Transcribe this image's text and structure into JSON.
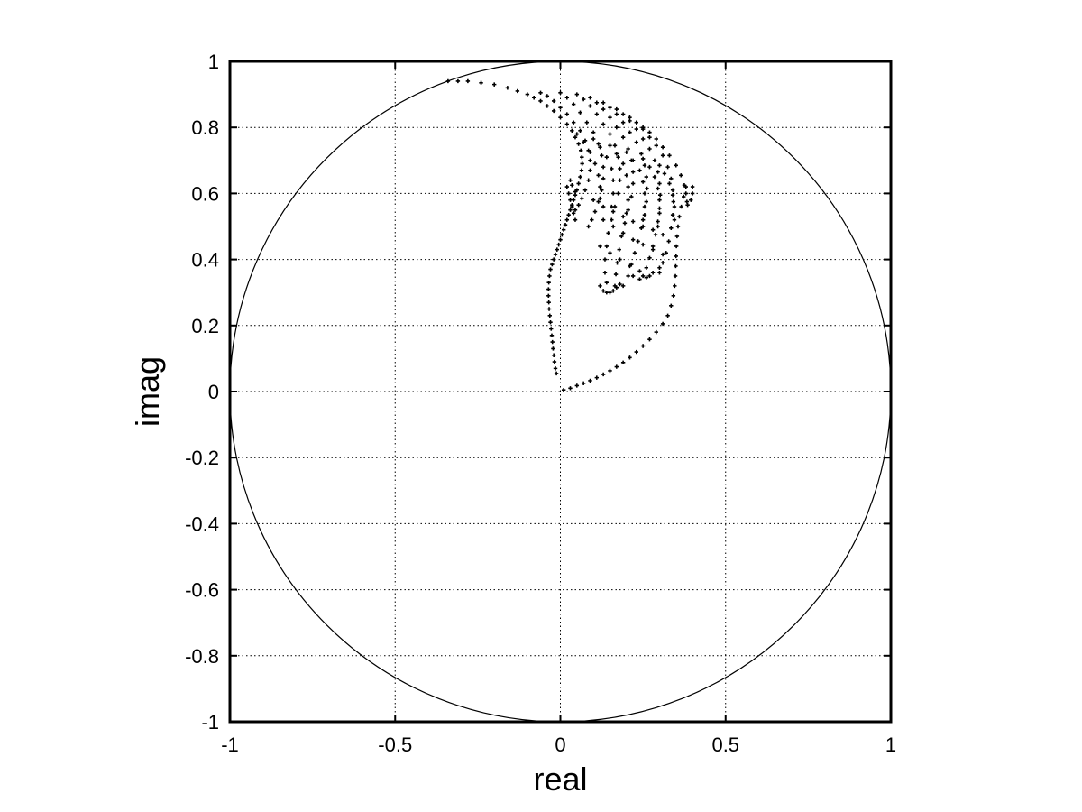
{
  "chart_data": {
    "type": "scatter",
    "title": "",
    "xlabel": "real",
    "ylabel": "imag",
    "xlim": [
      -1,
      1
    ],
    "ylim": [
      -1,
      1
    ],
    "grid": true,
    "xticks": [
      -1,
      -0.5,
      0,
      0.5,
      1
    ],
    "xtick_labels": [
      "-1",
      "-0.5",
      "0",
      "0.5",
      "1"
    ],
    "yticks": [
      -1,
      -0.8,
      -0.6,
      -0.4,
      -0.2,
      0,
      0.2,
      0.4,
      0.6,
      0.8,
      1
    ],
    "ytick_labels": [
      "-1",
      "-0.8",
      "-0.6",
      "-0.4",
      "-0.2",
      "0",
      "0.2",
      "0.4",
      "0.6",
      "0.8",
      "1"
    ],
    "unit_circle": {
      "center": [
        0,
        0
      ],
      "radius": 1
    },
    "marker_color": "#000000",
    "series": [
      {
        "points": [
          [
            -0.34,
            0.94
          ],
          [
            -0.31,
            0.94
          ],
          [
            -0.28,
            0.94
          ],
          [
            -0.24,
            0.935
          ],
          [
            -0.2,
            0.93
          ],
          [
            -0.16,
            0.92
          ],
          [
            -0.13,
            0.91
          ],
          [
            -0.1,
            0.9
          ],
          [
            -0.08,
            0.89
          ],
          [
            -0.06,
            0.88
          ],
          [
            -0.04,
            0.865
          ],
          [
            -0.02,
            0.85
          ],
          [
            0.0,
            0.83
          ],
          [
            0.02,
            0.81
          ],
          [
            0.035,
            0.79
          ],
          [
            0.045,
            0.77
          ],
          [
            0.055,
            0.75
          ],
          [
            0.062,
            0.73
          ],
          [
            0.065,
            0.71
          ],
          [
            0.066,
            0.69
          ],
          [
            0.064,
            0.67
          ],
          [
            0.06,
            0.65
          ],
          [
            0.055,
            0.63
          ],
          [
            0.05,
            0.61
          ],
          [
            0.045,
            0.595
          ],
          [
            0.04,
            0.58
          ],
          [
            0.035,
            0.565
          ],
          [
            0.03,
            0.55
          ],
          [
            0.025,
            0.535
          ],
          [
            0.02,
            0.52
          ],
          [
            0.015,
            0.505
          ],
          [
            0.01,
            0.49
          ],
          [
            0.005,
            0.475
          ],
          [
            0.0,
            0.46
          ],
          [
            -0.005,
            0.445
          ],
          [
            -0.01,
            0.43
          ],
          [
            -0.015,
            0.415
          ],
          [
            -0.02,
            0.4
          ],
          [
            -0.025,
            0.385
          ],
          [
            -0.03,
            0.37
          ],
          [
            -0.033,
            0.35
          ],
          [
            -0.035,
            0.33
          ],
          [
            -0.036,
            0.31
          ],
          [
            -0.036,
            0.29
          ],
          [
            -0.035,
            0.27
          ],
          [
            -0.034,
            0.25
          ],
          [
            -0.032,
            0.23
          ],
          [
            -0.03,
            0.21
          ],
          [
            -0.028,
            0.19
          ],
          [
            -0.026,
            0.17
          ],
          [
            -0.024,
            0.15
          ],
          [
            -0.022,
            0.13
          ],
          [
            -0.02,
            0.11
          ],
          [
            -0.018,
            0.09
          ],
          [
            -0.015,
            0.07
          ],
          [
            -0.012,
            0.055
          ],
          [
            0.01,
            0.005
          ],
          [
            0.03,
            0.01
          ],
          [
            0.05,
            0.018
          ],
          [
            0.07,
            0.025
          ],
          [
            0.09,
            0.033
          ],
          [
            0.11,
            0.042
          ],
          [
            0.13,
            0.052
          ],
          [
            0.15,
            0.063
          ],
          [
            0.17,
            0.075
          ],
          [
            0.19,
            0.088
          ],
          [
            0.21,
            0.103
          ],
          [
            0.23,
            0.12
          ],
          [
            0.25,
            0.138
          ],
          [
            0.27,
            0.158
          ],
          [
            0.29,
            0.18
          ],
          [
            0.31,
            0.205
          ],
          [
            0.325,
            0.23
          ],
          [
            0.335,
            0.26
          ],
          [
            0.342,
            0.29
          ],
          [
            0.346,
            0.32
          ],
          [
            0.348,
            0.35
          ],
          [
            0.349,
            0.38
          ],
          [
            0.35,
            0.41
          ],
          [
            0.351,
            0.44
          ],
          [
            0.353,
            0.47
          ],
          [
            0.356,
            0.5
          ],
          [
            0.36,
            0.53
          ],
          [
            0.366,
            0.56
          ],
          [
            0.373,
            0.59
          ],
          [
            0.38,
            0.62
          ],
          [
            -0.06,
            0.905
          ],
          [
            -0.04,
            0.895
          ],
          [
            -0.02,
            0.88
          ],
          [
            0.0,
            0.86
          ],
          [
            0.02,
            0.84
          ],
          [
            0.04,
            0.815
          ],
          [
            0.06,
            0.79
          ],
          [
            0.075,
            0.76
          ],
          [
            0.085,
            0.73
          ],
          [
            0.09,
            0.7
          ],
          [
            0.09,
            0.67
          ],
          [
            0.085,
            0.64
          ],
          [
            0.075,
            0.61
          ],
          [
            0.065,
            0.585
          ],
          [
            0.055,
            0.565
          ],
          [
            0.045,
            0.55
          ],
          [
            0.0,
            0.905
          ],
          [
            0.02,
            0.89
          ],
          [
            0.04,
            0.87
          ],
          [
            0.06,
            0.845
          ],
          [
            0.08,
            0.815
          ],
          [
            0.1,
            0.785
          ],
          [
            0.115,
            0.75
          ],
          [
            0.125,
            0.715
          ],
          [
            0.13,
            0.68
          ],
          [
            0.13,
            0.645
          ],
          [
            0.125,
            0.61
          ],
          [
            0.115,
            0.575
          ],
          [
            0.105,
            0.545
          ],
          [
            0.095,
            0.52
          ],
          [
            0.085,
            0.5
          ],
          [
            0.05,
            0.9
          ],
          [
            0.07,
            0.885
          ],
          [
            0.09,
            0.865
          ],
          [
            0.11,
            0.84
          ],
          [
            0.13,
            0.81
          ],
          [
            0.15,
            0.78
          ],
          [
            0.165,
            0.745
          ],
          [
            0.175,
            0.71
          ],
          [
            0.18,
            0.675
          ],
          [
            0.18,
            0.64
          ],
          [
            0.175,
            0.6
          ],
          [
            0.165,
            0.56
          ],
          [
            0.155,
            0.52
          ],
          [
            0.145,
            0.48
          ],
          [
            0.14,
            0.44
          ],
          [
            0.135,
            0.4
          ],
          [
            0.135,
            0.36
          ],
          [
            0.14,
            0.33
          ],
          [
            0.09,
            0.89
          ],
          [
            0.11,
            0.875
          ],
          [
            0.13,
            0.855
          ],
          [
            0.15,
            0.83
          ],
          [
            0.17,
            0.8
          ],
          [
            0.19,
            0.77
          ],
          [
            0.205,
            0.735
          ],
          [
            0.215,
            0.7
          ],
          [
            0.22,
            0.665
          ],
          [
            0.22,
            0.63
          ],
          [
            0.215,
            0.59
          ],
          [
            0.205,
            0.55
          ],
          [
            0.195,
            0.51
          ],
          [
            0.185,
            0.47
          ],
          [
            0.178,
            0.43
          ],
          [
            0.172,
            0.39
          ],
          [
            0.168,
            0.355
          ],
          [
            0.165,
            0.32
          ],
          [
            0.13,
            0.875
          ],
          [
            0.15,
            0.86
          ],
          [
            0.17,
            0.84
          ],
          [
            0.19,
            0.815
          ],
          [
            0.21,
            0.785
          ],
          [
            0.23,
            0.755
          ],
          [
            0.245,
            0.72
          ],
          [
            0.255,
            0.685
          ],
          [
            0.26,
            0.65
          ],
          [
            0.262,
            0.615
          ],
          [
            0.26,
            0.575
          ],
          [
            0.255,
            0.535
          ],
          [
            0.245,
            0.495
          ],
          [
            0.235,
            0.455
          ],
          [
            0.225,
            0.42
          ],
          [
            0.215,
            0.385
          ],
          [
            0.205,
            0.35
          ],
          [
            0.19,
            0.32
          ],
          [
            0.17,
            0.855
          ],
          [
            0.19,
            0.84
          ],
          [
            0.21,
            0.82
          ],
          [
            0.23,
            0.795
          ],
          [
            0.25,
            0.765
          ],
          [
            0.27,
            0.735
          ],
          [
            0.285,
            0.7
          ],
          [
            0.295,
            0.665
          ],
          [
            0.3,
            0.63
          ],
          [
            0.302,
            0.595
          ],
          [
            0.3,
            0.555
          ],
          [
            0.295,
            0.515
          ],
          [
            0.288,
            0.475
          ],
          [
            0.28,
            0.44
          ],
          [
            0.27,
            0.405
          ],
          [
            0.26,
            0.375
          ],
          [
            0.25,
            0.35
          ],
          [
            0.21,
            0.83
          ],
          [
            0.23,
            0.815
          ],
          [
            0.25,
            0.795
          ],
          [
            0.27,
            0.77
          ],
          [
            0.29,
            0.745
          ],
          [
            0.31,
            0.715
          ],
          [
            0.325,
            0.68
          ],
          [
            0.335,
            0.645
          ],
          [
            0.34,
            0.61
          ],
          [
            0.342,
            0.575
          ],
          [
            0.34,
            0.535
          ],
          [
            0.335,
            0.495
          ],
          [
            0.328,
            0.455
          ],
          [
            0.32,
            0.42
          ],
          [
            0.31,
            0.39
          ],
          [
            0.3,
            0.36
          ],
          [
            0.25,
            0.8
          ],
          [
            0.27,
            0.785
          ],
          [
            0.29,
            0.765
          ],
          [
            0.31,
            0.74
          ],
          [
            0.33,
            0.715
          ],
          [
            0.35,
            0.685
          ],
          [
            0.365,
            0.655
          ],
          [
            0.375,
            0.625
          ],
          [
            0.38,
            0.6
          ],
          [
            0.383,
            0.575
          ],
          [
            0.4,
            0.62
          ],
          [
            0.4,
            0.6
          ],
          [
            0.395,
            0.58
          ],
          [
            0.385,
            0.565
          ],
          [
            0.12,
            0.32
          ],
          [
            0.13,
            0.305
          ],
          [
            0.14,
            0.3
          ],
          [
            0.15,
            0.3
          ],
          [
            0.16,
            0.305
          ],
          [
            0.17,
            0.315
          ],
          [
            0.18,
            0.325
          ],
          [
            0.02,
            0.62
          ],
          [
            0.025,
            0.6
          ],
          [
            0.03,
            0.58
          ],
          [
            0.035,
            0.56
          ],
          [
            0.04,
            0.54
          ],
          [
            0.045,
            0.52
          ],
          [
            0.03,
            0.64
          ],
          [
            0.035,
            0.625
          ],
          [
            0.045,
            0.605
          ],
          [
            0.05,
            0.78
          ],
          [
            0.07,
            0.755
          ],
          [
            0.09,
            0.725
          ],
          [
            0.105,
            0.69
          ],
          [
            0.115,
            0.655
          ],
          [
            0.12,
            0.62
          ],
          [
            0.12,
            0.585
          ],
          [
            0.1,
            0.765
          ],
          [
            0.12,
            0.74
          ],
          [
            0.14,
            0.71
          ],
          [
            0.155,
            0.675
          ],
          [
            0.16,
            0.64
          ],
          [
            0.16,
            0.6
          ],
          [
            0.155,
            0.56
          ],
          [
            0.15,
            0.745
          ],
          [
            0.17,
            0.72
          ],
          [
            0.19,
            0.69
          ],
          [
            0.2,
            0.655
          ],
          [
            0.205,
            0.62
          ],
          [
            0.205,
            0.58
          ],
          [
            0.2,
            0.54
          ],
          [
            0.2,
            0.725
          ],
          [
            0.22,
            0.7
          ],
          [
            0.24,
            0.67
          ],
          [
            0.25,
            0.635
          ],
          [
            0.255,
            0.6
          ],
          [
            0.255,
            0.56
          ],
          [
            0.25,
            0.52
          ],
          [
            0.25,
            0.705
          ],
          [
            0.27,
            0.68
          ],
          [
            0.285,
            0.65
          ],
          [
            0.295,
            0.615
          ],
          [
            0.3,
            0.58
          ],
          [
            0.3,
            0.54
          ],
          [
            0.295,
            0.5
          ],
          [
            0.3,
            0.685
          ],
          [
            0.315,
            0.66
          ],
          [
            0.33,
            0.63
          ],
          [
            0.34,
            0.595
          ],
          [
            0.345,
            0.56
          ],
          [
            0.345,
            0.52
          ],
          [
            0.12,
            0.44
          ],
          [
            0.15,
            0.42
          ],
          [
            0.18,
            0.4
          ],
          [
            0.21,
            0.38
          ],
          [
            0.24,
            0.365
          ],
          [
            0.27,
            0.35
          ],
          [
            0.13,
            0.52
          ],
          [
            0.16,
            0.5
          ],
          [
            0.19,
            0.48
          ],
          [
            0.22,
            0.46
          ],
          [
            0.25,
            0.445
          ],
          [
            0.28,
            0.43
          ],
          [
            0.31,
            0.415
          ],
          [
            0.1,
            0.58
          ],
          [
            0.13,
            0.56
          ],
          [
            0.16,
            0.545
          ],
          [
            0.19,
            0.53
          ],
          [
            0.22,
            0.515
          ],
          [
            0.25,
            0.5
          ],
          [
            0.28,
            0.49
          ],
          [
            0.31,
            0.475
          ],
          [
            0.22,
            0.35
          ],
          [
            0.24,
            0.34
          ],
          [
            0.26,
            0.345
          ],
          [
            0.28,
            0.36
          ],
          [
            0.3,
            0.375
          ]
        ]
      }
    ]
  }
}
